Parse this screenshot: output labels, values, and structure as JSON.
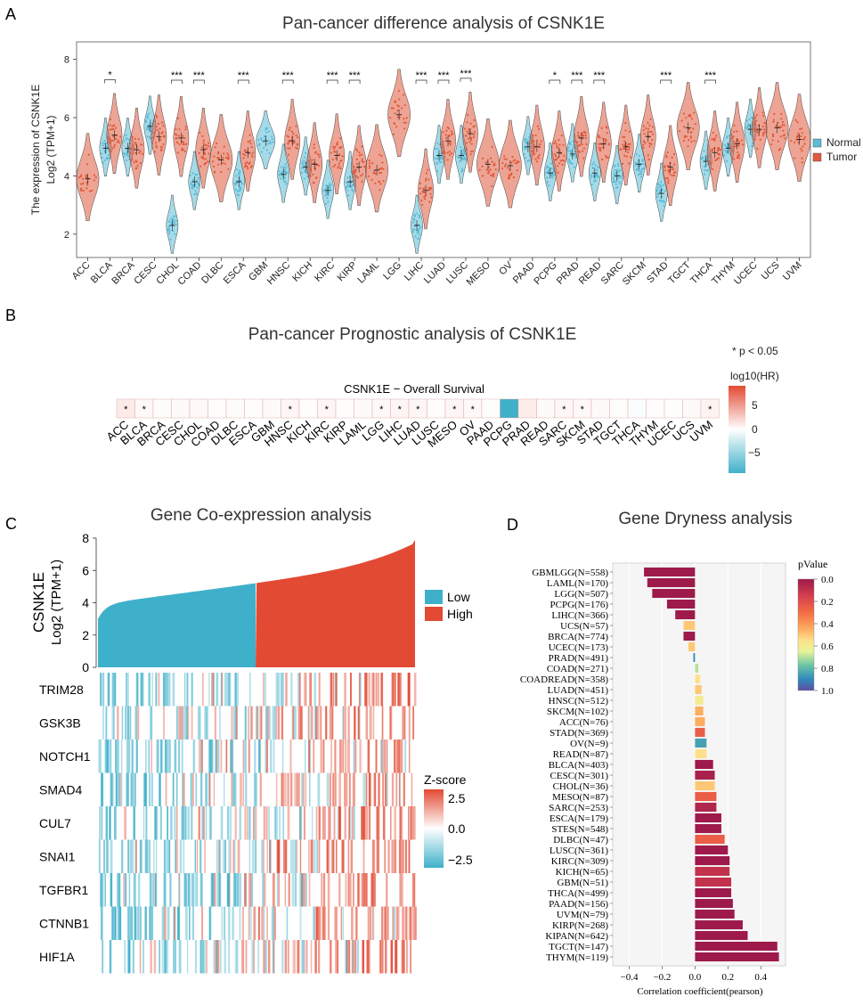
{
  "panels": {
    "a": {
      "letter": "A",
      "title": "Pan-cancer difference analysis of CSNK1E"
    },
    "b": {
      "letter": "B",
      "title": "Pan-cancer Prognostic analysis of CSNK1E"
    },
    "c": {
      "letter": "C",
      "title": "Gene Co-expression analysis"
    },
    "d": {
      "letter": "D",
      "title": "Gene Dryness analysis"
    }
  },
  "colors": {
    "normal": "#5bbcd6",
    "tumor": "#e05a3d",
    "low": "#3fb0c9",
    "high": "#e24a33",
    "heat_pos": "#e24a33",
    "heat_neg": "#3fb0c9",
    "heat_mid": "#ffffff"
  },
  "chart_data": [
    {
      "id": "violin",
      "type": "violin",
      "title": "Pan-cancer difference analysis of CSNK1E",
      "ylabel_line1": "The expression of CSNK1E",
      "ylabel_line2": "Log2 (TPM+1)",
      "ylim": [
        1.2,
        8.6
      ],
      "yticks": [
        2,
        4,
        6,
        8
      ],
      "legend": [
        "Normal",
        "Tumor"
      ],
      "categories": [
        "ACC",
        "BLCA",
        "BRCA",
        "CESC",
        "CHOL",
        "COAD",
        "DLBC",
        "ESCA",
        "GBM",
        "HNSC",
        "KICH",
        "KIRC",
        "KIRP",
        "LAML",
        "LGG",
        "LIHC",
        "LUAD",
        "LUSC",
        "MESO",
        "OV",
        "PAAD",
        "PCPG",
        "PRAD",
        "READ",
        "SARC",
        "SKCM",
        "STAD",
        "TGCT",
        "THCA",
        "THYM",
        "UCEC",
        "UCS",
        "UVM"
      ],
      "normal_median": [
        null,
        4.95,
        4.95,
        5.7,
        2.3,
        3.8,
        null,
        3.8,
        5.2,
        4.05,
        4.3,
        3.5,
        3.8,
        null,
        null,
        2.3,
        4.7,
        4.7,
        null,
        null,
        5.0,
        4.1,
        4.75,
        4.1,
        4.0,
        4.4,
        3.4,
        null,
        4.5,
        4.95,
        5.6,
        null,
        null
      ],
      "tumor_median": [
        3.9,
        5.4,
        4.9,
        5.35,
        5.3,
        4.9,
        4.55,
        4.8,
        null,
        5.2,
        4.4,
        4.7,
        4.3,
        4.2,
        6.1,
        3.5,
        5.2,
        5.45,
        4.4,
        4.35,
        5.0,
        4.8,
        5.3,
        5.1,
        5.0,
        5.35,
        4.3,
        5.65,
        4.8,
        5.1,
        5.6,
        5.65,
        5.25
      ],
      "significance": [
        "",
        "*",
        "",
        "",
        "***",
        "***",
        "",
        "***",
        "",
        "***",
        "",
        "***",
        "***",
        "",
        "",
        "***",
        "***",
        "***",
        "",
        "",
        "",
        "*",
        "***",
        "***",
        "",
        "",
        "***",
        "",
        "***",
        "",
        "",
        "",
        ""
      ]
    },
    {
      "id": "survival",
      "type": "heatmap",
      "title": "Pan-cancer Prognostic analysis of CSNK1E",
      "subtitle": "CSNK1E − Overall Survival",
      "note": "* p < 0.05",
      "legend_title": "log10(HR)",
      "legend_ticks": [
        "5",
        "0",
        "−5"
      ],
      "categories": [
        "ACC",
        "BLCA",
        "BRCA",
        "CESC",
        "CHOL",
        "COAD",
        "DLBC",
        "ESCA",
        "GBM",
        "HNSC",
        "KICH",
        "KIRC",
        "KIRP",
        "LAML",
        "LGG",
        "LIHC",
        "LUAD",
        "LUSC",
        "MESO",
        "OV",
        "PAAD",
        "PCPG",
        "PRAD",
        "READ",
        "SARC",
        "SKCM",
        "STAD",
        "TGCT",
        "THCA",
        "THYM",
        "UCEC",
        "UCS",
        "UVM"
      ],
      "values": [
        0.9,
        0.3,
        0.15,
        0.2,
        0.3,
        0.1,
        0.15,
        0.1,
        0.2,
        0.4,
        0.1,
        0.4,
        0.1,
        0.2,
        0.3,
        0.4,
        0.4,
        0.1,
        0.4,
        0.3,
        0.1,
        -8,
        0.8,
        0.2,
        0.4,
        0.3,
        0.2,
        0.1,
        -0.2,
        0.1,
        0.1,
        0.2,
        0.5
      ],
      "significant": [
        "*",
        "*",
        "",
        "",
        "",
        "",
        "",
        "",
        "",
        "*",
        "",
        "*",
        "",
        "",
        "*",
        "*",
        "*",
        "",
        "*",
        "*",
        "",
        "",
        "",
        "",
        "*",
        "*",
        "",
        "",
        "",
        "",
        "",
        "",
        "*"
      ]
    },
    {
      "id": "coexpression",
      "type": "area+heatmap",
      "title": "Gene Co-expression analysis",
      "ylabel_line1": "CSNK1E",
      "ylabel_line2": "Log2 (TPM+1)",
      "yticks": [
        0,
        2,
        4,
        6,
        8
      ],
      "ylim": [
        0,
        8
      ],
      "legend": [
        "Low",
        "High"
      ],
      "genes": [
        "TRIM28",
        "GSK3B",
        "NOTCH1",
        "SMAD4",
        "CUL7",
        "SNAI1",
        "TGFBR1",
        "CTNNB1",
        "HIF1A"
      ],
      "zscore_title": "Z-score",
      "zscore_ticks": [
        "2.5",
        "0.0",
        "−2.5"
      ]
    },
    {
      "id": "dryness",
      "type": "bar",
      "orientation": "horizontal",
      "title": "Gene Dryness analysis",
      "xlabel": "Correlation coefficient(pearson)",
      "xlim": [
        -0.5,
        0.55
      ],
      "xticks": [
        "−0.4",
        "−0.2",
        "0.0",
        "0.2",
        "0.4"
      ],
      "legend_title": "pValue",
      "legend_ticks": [
        "0.0",
        "0.2",
        "0.4",
        "0.6",
        "0.8",
        "1.0"
      ],
      "categories": [
        "GBMLGG(N=558)",
        "LAML(N=170)",
        "LGG(N=507)",
        "PCPG(N=176)",
        "LIHC(N=366)",
        "UCS(N=57)",
        "BRCA(N=774)",
        "UCEC(N=173)",
        "PRAD(N=491)",
        "COAD(N=271)",
        "COADREAD(N=358)",
        "LUAD(N=451)",
        "HNSC(N=512)",
        "SKCM(N=102)",
        "ACC(N=76)",
        "STAD(N=369)",
        "OV(N=9)",
        "READ(N=87)",
        "BLCA(N=403)",
        "CESC(N=301)",
        "CHOL(N=36)",
        "MESO(N=87)",
        "SARC(N=253)",
        "ESCA(N=179)",
        "STES(N=548)",
        "DLBC(N=47)",
        "LUSC(N=361)",
        "KIRC(N=309)",
        "KICH(N=65)",
        "GBM(N=51)",
        "THCA(N=499)",
        "PAAD(N=156)",
        "UVM(N=79)",
        "KIRP(N=268)",
        "KIPAN(N=642)",
        "TGCT(N=147)",
        "THYM(N=119)"
      ],
      "values": [
        -0.31,
        -0.29,
        -0.26,
        -0.17,
        -0.12,
        -0.07,
        -0.07,
        -0.04,
        -0.01,
        0.02,
        0.03,
        0.04,
        0.05,
        0.05,
        0.06,
        0.06,
        0.07,
        0.07,
        0.11,
        0.12,
        0.12,
        0.13,
        0.13,
        0.16,
        0.16,
        0.18,
        0.2,
        0.21,
        0.21,
        0.22,
        0.22,
        0.23,
        0.24,
        0.29,
        0.32,
        0.5,
        0.51
      ],
      "pvalues": [
        0.0,
        0.0,
        0.0,
        0.0,
        0.0,
        0.5,
        0.0,
        0.5,
        0.9,
        0.7,
        0.55,
        0.5,
        0.6,
        0.45,
        0.45,
        0.25,
        0.85,
        0.55,
        0.0,
        0.03,
        0.5,
        0.25,
        0.05,
        0.0,
        0.0,
        0.25,
        0.0,
        0.0,
        0.1,
        0.1,
        0.0,
        0.0,
        0.0,
        0.0,
        0.0,
        0.0,
        0.0
      ]
    }
  ]
}
